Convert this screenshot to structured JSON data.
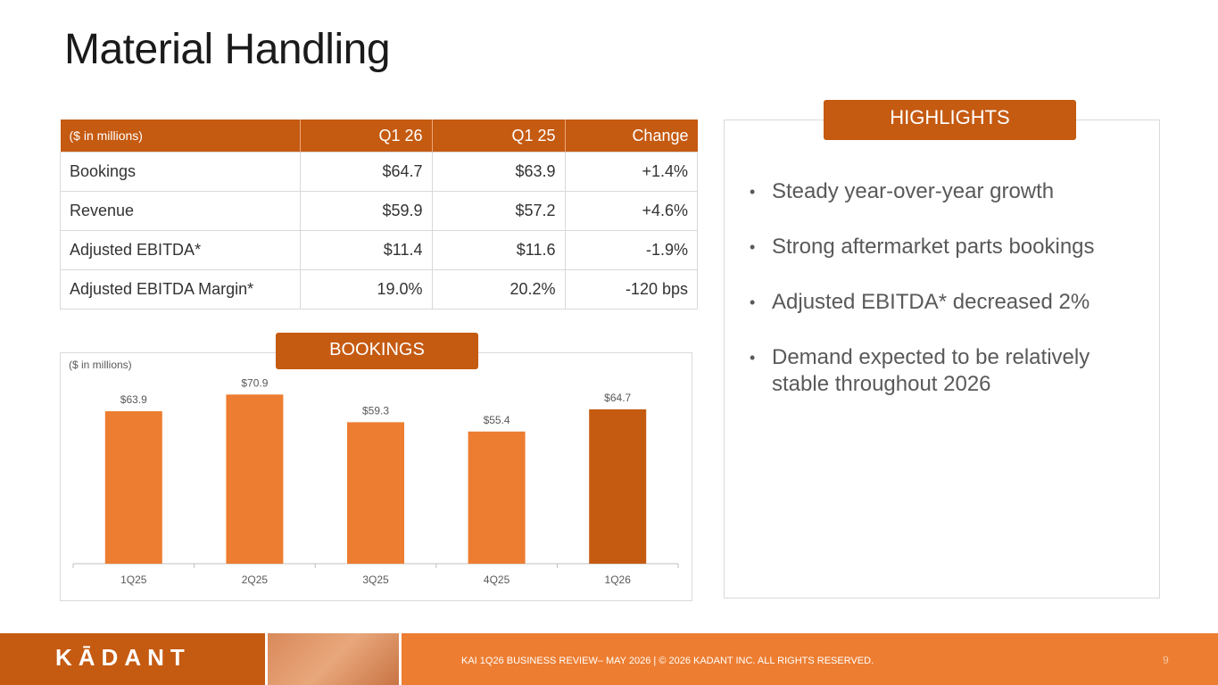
{
  "title": "Material Handling",
  "table": {
    "header": [
      "($ in millions)",
      "Q1 26",
      "Q1 25",
      "Change"
    ],
    "rows": [
      [
        "Bookings",
        "$64.7",
        "$63.9",
        "+1.4%"
      ],
      [
        "Revenue",
        "$59.9",
        "$57.2",
        "+4.6%"
      ],
      [
        "Adjusted EBITDA*",
        "$11.4",
        "$11.6",
        "-1.9%"
      ],
      [
        "Adjusted EBITDA Margin*",
        "19.0%",
        "20.2%",
        "-120 bps"
      ]
    ]
  },
  "chart_data": {
    "type": "bar",
    "title": "BOOKINGS",
    "subtitle": "($ in millions)",
    "categories": [
      "1Q25",
      "2Q25",
      "3Q25",
      "4Q25",
      "1Q26"
    ],
    "values": [
      63.9,
      70.9,
      59.3,
      55.4,
      64.7
    ],
    "value_labels": [
      "$63.9",
      "$70.9",
      "$59.3",
      "$55.4",
      "$64.7"
    ],
    "colors": [
      "#ed7d31",
      "#ed7d31",
      "#ed7d31",
      "#ed7d31",
      "#c55a11"
    ],
    "ylim": [
      0,
      80
    ]
  },
  "highlights": {
    "title": "HIGHLIGHTS",
    "bullets": [
      "Steady year-over-year growth",
      "Strong aftermarket parts bookings",
      "Adjusted EBITDA* decreased 2%",
      "Demand expected to be relatively stable throughout 2026"
    ]
  },
  "footer": {
    "logo": "KĀDANT",
    "text": "KAI 1Q26 BUSINESS REVIEW– MAY 2026 | © 2026 KADANT INC. ALL RIGHTS RESERVED.",
    "page": "9"
  }
}
